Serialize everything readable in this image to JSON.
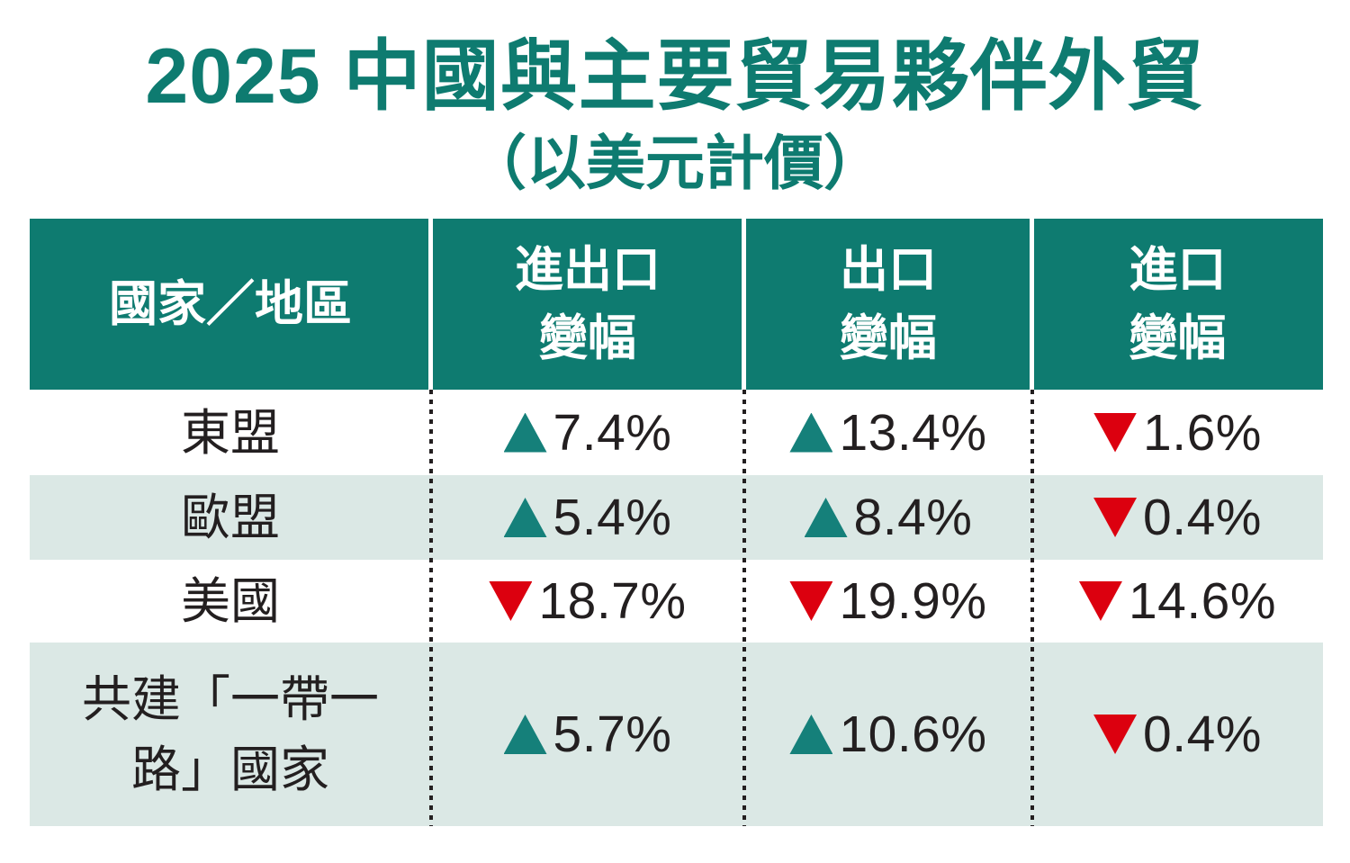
{
  "title": "2025 中國與主要貿易夥伴外貿",
  "subtitle": "（以美元計價）",
  "table": {
    "header": {
      "region": "國家／地區",
      "cols": [
        {
          "line1": "進出口",
          "line2": "變幅"
        },
        {
          "line1": "出口",
          "line2": "變幅"
        },
        {
          "line1": "進口",
          "line2": "變幅"
        }
      ]
    },
    "rows": [
      {
        "region_line1": "東盟",
        "region_line2": "",
        "cells": [
          {
            "dir": "up",
            "value": "7.4%"
          },
          {
            "dir": "up",
            "value": "13.4%"
          },
          {
            "dir": "down",
            "value": "1.6%"
          }
        ]
      },
      {
        "region_line1": "歐盟",
        "region_line2": "",
        "cells": [
          {
            "dir": "up",
            "value": "5.4%"
          },
          {
            "dir": "up",
            "value": "8.4%"
          },
          {
            "dir": "down",
            "value": "0.4%"
          }
        ]
      },
      {
        "region_line1": "美國",
        "region_line2": "",
        "cells": [
          {
            "dir": "down",
            "value": "18.7%"
          },
          {
            "dir": "down",
            "value": "19.9%"
          },
          {
            "dir": "down",
            "value": "14.6%"
          }
        ]
      },
      {
        "region_line1": "共建「一帶一",
        "region_line2": "路」國家",
        "cells": [
          {
            "dir": "up",
            "value": "5.7%"
          },
          {
            "dir": "up",
            "value": "10.6%"
          },
          {
            "dir": "down",
            "value": "0.4%"
          }
        ]
      }
    ]
  },
  "icons": {
    "up": "triangle-up-icon",
    "down": "triangle-down-icon"
  },
  "colors": {
    "teal": "#0e7b70",
    "row_tint": "#dbe8e5",
    "up_triangle": "#15807a",
    "down_triangle": "#dc000f",
    "text": "#231f20",
    "header_text": "#ffffff"
  },
  "chart_data": {
    "type": "table",
    "title": "2025 中國與主要貿易夥伴外貿（以美元計價）",
    "columns": [
      "國家／地區",
      "進出口變幅",
      "出口變幅",
      "進口變幅"
    ],
    "rows": [
      {
        "region": "東盟",
        "total_trade_change_pct": 7.4,
        "export_change_pct": 13.4,
        "import_change_pct": -1.6
      },
      {
        "region": "歐盟",
        "total_trade_change_pct": 5.4,
        "export_change_pct": 8.4,
        "import_change_pct": -0.4
      },
      {
        "region": "美國",
        "total_trade_change_pct": -18.7,
        "export_change_pct": -19.9,
        "import_change_pct": -14.6
      },
      {
        "region": "共建「一帶一路」國家",
        "total_trade_change_pct": 5.7,
        "export_change_pct": 10.6,
        "import_change_pct": -0.4
      }
    ]
  }
}
